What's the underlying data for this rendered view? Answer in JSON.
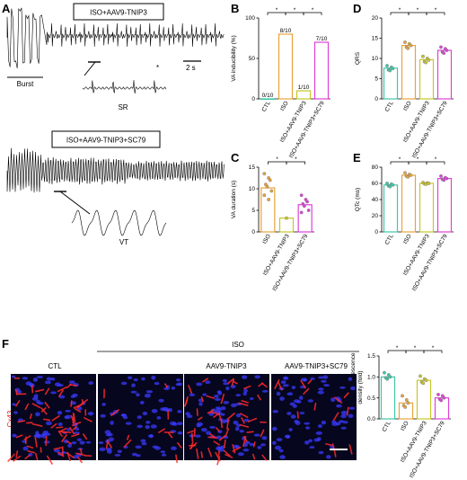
{
  "panels": {
    "A": "A",
    "B": "B",
    "C": "C",
    "D": "D",
    "E": "E",
    "F": "F"
  },
  "traceA": {
    "box1": "ISO+AAV9-TNIP3",
    "box2": "ISO+AAV9-TNIP3+SC79",
    "burst": "Burst",
    "scale": "2 s",
    "sr": "SR",
    "vt": "VT",
    "star": "*"
  },
  "imaging": {
    "group_iso": "ISO",
    "col1": "CTL",
    "col3": "AAV9-TNIP3",
    "col4": "AAV9-TNIP3+SC79",
    "row": "Cx43"
  },
  "colors": {
    "ctl": "#3ec8a8",
    "iso": "#e8a33b",
    "tnip": "#c8c628",
    "sc79": "#e040d8",
    "dot": "#808080"
  },
  "chart_data": [
    {
      "panel": "B",
      "type": "bar",
      "ylabel": "VA inducibility (%)",
      "categories": [
        "CTL",
        "ISO",
        "ISO+AAV9-TNIP3",
        "ISO+AAV9-TNIP3+SC79"
      ],
      "values": [
        0,
        80,
        10,
        70
      ],
      "labels": [
        "0/10",
        "8/10",
        "1/10",
        "7/10"
      ],
      "ylim": [
        0,
        100
      ],
      "yticks": [
        "0",
        "50",
        "100"
      ],
      "sig": [
        "*",
        "*",
        "*"
      ]
    },
    {
      "panel": "C",
      "type": "bar",
      "ylabel": "VA duration (s)",
      "categories": [
        "ISO",
        "ISO+AAV9-TNIP3",
        "ISO+AAV9-TNIP3+SC79"
      ],
      "values": [
        10.2,
        3.2,
        6.3
      ],
      "points": [
        [
          13.5,
          12.5,
          12,
          11,
          10.5,
          9.5,
          8.5,
          7.5
        ],
        [
          3.2
        ],
        [
          8.5,
          7.5,
          7,
          6.5,
          6,
          5,
          4.5
        ]
      ],
      "ylim": [
        0,
        15
      ],
      "yticks": [
        "0",
        "5",
        "10",
        "15"
      ],
      "sig": [
        "*",
        "*"
      ]
    },
    {
      "panel": "D",
      "type": "bar",
      "ylabel": "QRS",
      "categories": [
        "CTL",
        "ISO",
        "ISO+AAV9-TNIP3",
        "ISO+AAV9-TNIP3+SC79"
      ],
      "values": [
        7.6,
        13.2,
        9.7,
        12.0
      ],
      "points": [
        [
          8.2,
          7.8,
          7.5,
          7.2,
          7.0
        ],
        [
          14.0,
          13.6,
          13.2,
          12.8,
          12.5
        ],
        [
          10.5,
          10.0,
          9.6,
          9.2,
          9.0
        ],
        [
          12.8,
          12.4,
          12.0,
          11.6,
          11.3
        ]
      ],
      "ylim": [
        0,
        20
      ],
      "yticks": [
        "0",
        "5",
        "10",
        "15",
        "20"
      ],
      "sig": [
        "*",
        "*",
        "*"
      ]
    },
    {
      "panel": "E",
      "type": "bar",
      "ylabel": "QTc (ms)",
      "categories": [
        "CTL",
        "ISO",
        "ISO+AAV9-TNIP3",
        "ISO+AAV9-TNIP3+SC79"
      ],
      "values": [
        58,
        70,
        60,
        66
      ],
      "points": [
        [
          60,
          59,
          58,
          57,
          56
        ],
        [
          73,
          71,
          70,
          69,
          68
        ],
        [
          61,
          60.5,
          60,
          59.5,
          59
        ],
        [
          69,
          67,
          66,
          65,
          64
        ]
      ],
      "ylim": [
        0,
        80
      ],
      "yticks": [
        "0",
        "20",
        "40",
        "60",
        "80"
      ],
      "sig": [
        "*",
        "*",
        "*"
      ]
    },
    {
      "panel": "F",
      "type": "bar",
      "ylabel": "Cx43 immunofluorescence density (fold)",
      "categories": [
        "CTL",
        "ISO",
        "ISO+AAV9-TNIP3",
        "ISO+AAV9-TNIP3+SC79"
      ],
      "values": [
        1.0,
        0.38,
        0.92,
        0.5
      ],
      "points": [
        [
          1.1,
          1.05,
          1.0,
          0.98,
          0.95
        ],
        [
          0.55,
          0.45,
          0.38,
          0.32,
          0.28
        ],
        [
          1.02,
          0.95,
          0.92,
          0.88,
          0.85
        ],
        [
          0.58,
          0.55,
          0.5,
          0.47,
          0.44
        ]
      ],
      "ylim": [
        0,
        1.5
      ],
      "yticks": [
        "0.0",
        "0.5",
        "1.0",
        "1.5"
      ],
      "sig": [
        "*",
        "*",
        "*"
      ]
    }
  ]
}
